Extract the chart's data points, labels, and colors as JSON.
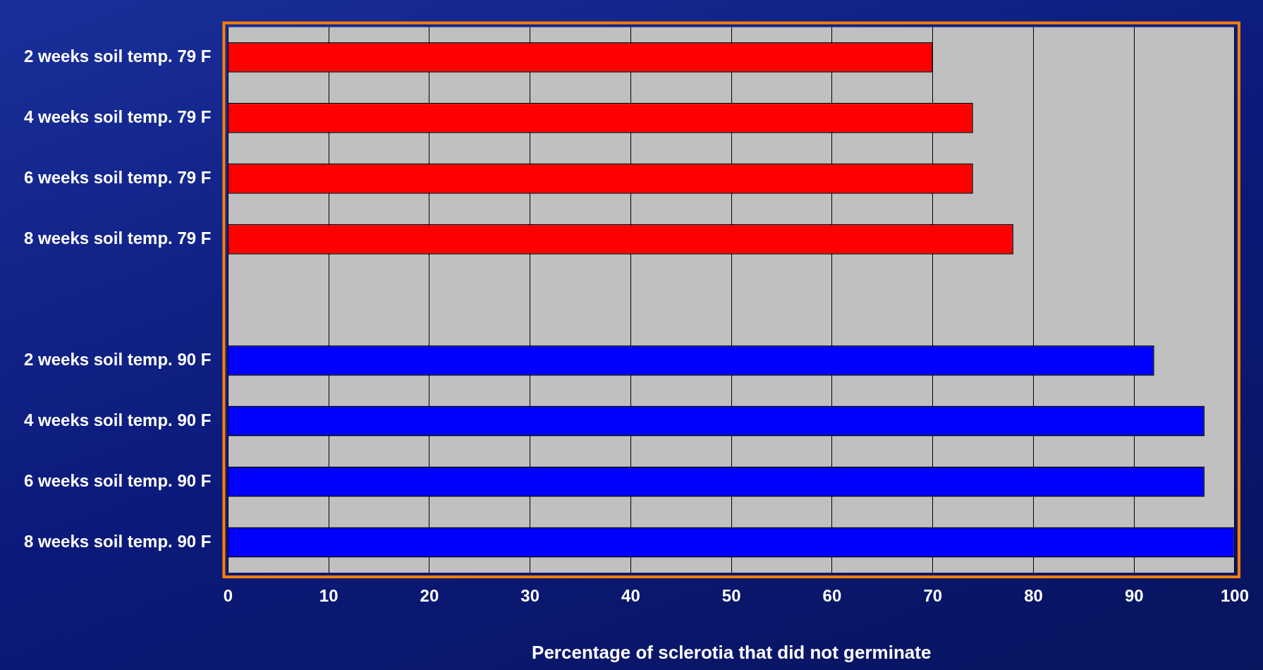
{
  "chart_data": {
    "type": "bar",
    "orientation": "horizontal",
    "xlabel": "Percentage of sclerotia that did not germinate",
    "categories": [
      "2 weeks soil temp. 79 F",
      "4 weeks soil temp. 79 F",
      "6 weeks soil temp. 79 F",
      "8 weeks soil temp. 79 F",
      null,
      "2 weeks soil temp. 90 F",
      "4 weeks soil temp. 90 F",
      "6 weeks soil temp. 90 F",
      "8 weeks soil temp. 90 F"
    ],
    "values": [
      70,
      74,
      74,
      78,
      null,
      92,
      97,
      97,
      100
    ],
    "colors": [
      "#ff0000",
      "#ff0000",
      "#ff0000",
      "#ff0000",
      "#ff0000",
      "#0000ff",
      "#0000ff",
      "#0000ff",
      "#0000ff"
    ],
    "xlim": [
      0,
      100
    ],
    "xticks": [
      0,
      10,
      20,
      30,
      40,
      50,
      60,
      70,
      80,
      90,
      100
    ],
    "grid": "x",
    "legend": false
  }
}
